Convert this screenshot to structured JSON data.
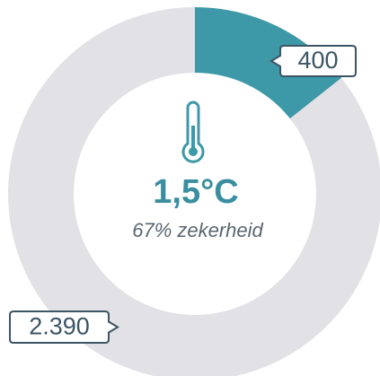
{
  "chart_data": {
    "type": "donut",
    "values": [
      400,
      2390
    ],
    "value_labels": [
      "400",
      "2.390"
    ],
    "colors": [
      "#3d98a8",
      "#e1e1e6"
    ],
    "center_title": "1,5°C",
    "center_subtitle": "67% zekerheid"
  }
}
